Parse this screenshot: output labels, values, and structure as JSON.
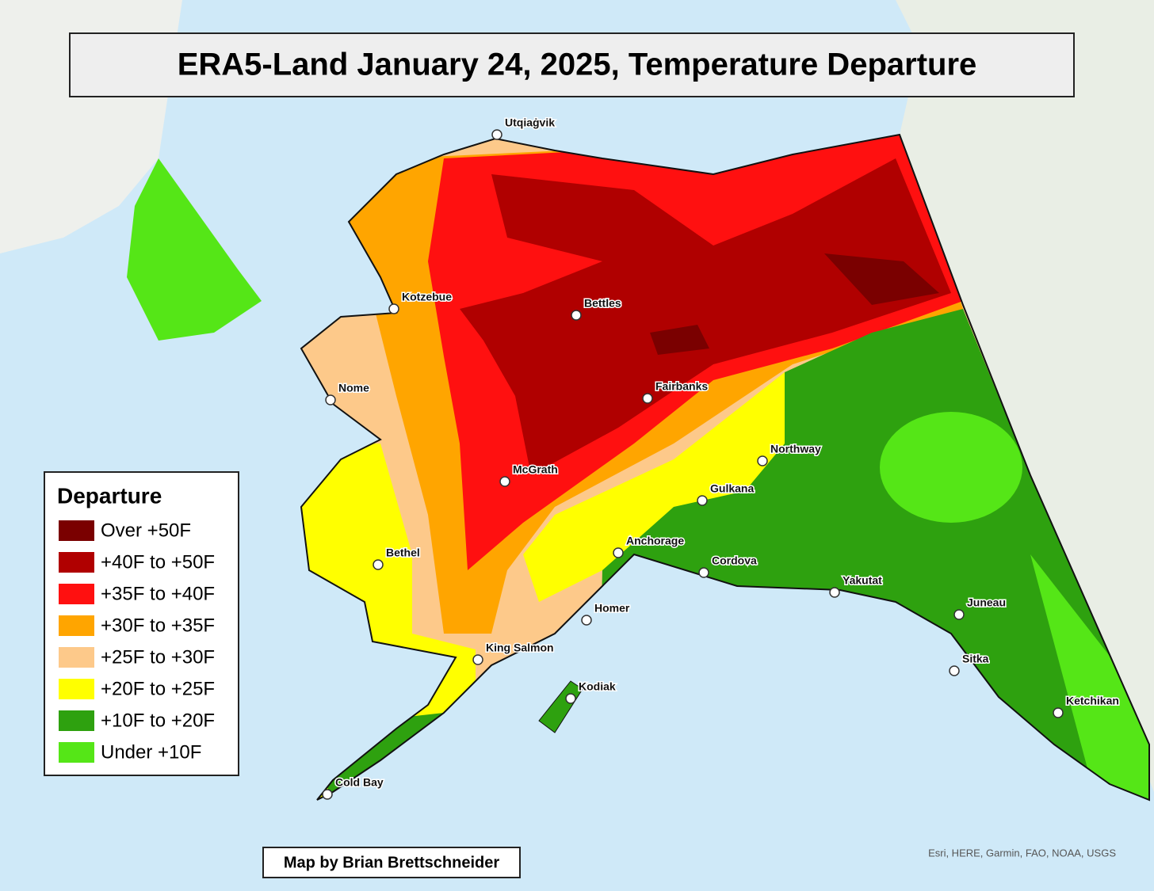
{
  "title": "ERA5-Land January 24, 2025, Temperature Departure",
  "legend": {
    "title": "Departure",
    "items": [
      {
        "label": "Over +50F",
        "color": "#7a0000"
      },
      {
        "label": "+40F to +50F",
        "color": "#b00000"
      },
      {
        "label": "+35F to +40F",
        "color": "#ff1010"
      },
      {
        "label": "+30F to +35F",
        "color": "#ffa500"
      },
      {
        "label": "+25F to +30F",
        "color": "#fdc98a"
      },
      {
        "label": "+20F to +25F",
        "color": "#ffff00"
      },
      {
        "label": "+10F to +20F",
        "color": "#2ea10f"
      },
      {
        "label": "Under +10F",
        "color": "#55e617"
      }
    ]
  },
  "cities": [
    "Utqiaġvik",
    "Kotzebue",
    "Bettles",
    "Nome",
    "Fairbanks",
    "Northway",
    "McGrath",
    "Gulkana",
    "Bethel",
    "Anchorage",
    "Cordova",
    "Yakutat",
    "Homer",
    "Juneau",
    "King Salmon",
    "Sitka",
    "Kodiak",
    "Ketchikan",
    "Cold Bay"
  ],
  "credit": "Map by Brian Brettschneider",
  "attribution": "Esri, HERE, Garmin, FAO, NOAA, USGS"
}
